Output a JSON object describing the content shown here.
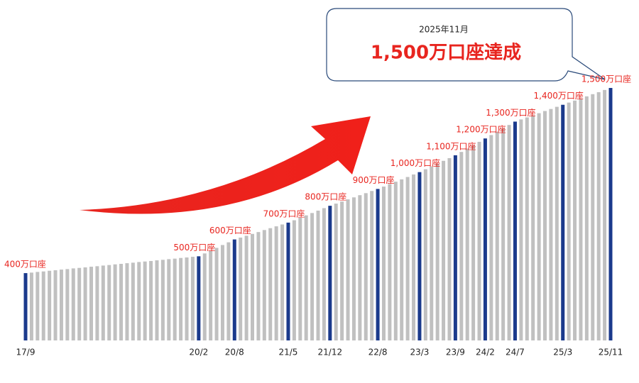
{
  "chart_data": {
    "type": "bar",
    "annotations": [
      "2025年11月",
      "1,500万口座達成"
    ],
    "color": "#c0c0c0",
    "highlight_color": "#1b3a8c",
    "label_color": "#e8251f",
    "categories": [
      "17/9",
      null,
      null,
      null,
      null,
      null,
      null,
      null,
      null,
      null,
      null,
      null,
      null,
      null,
      null,
      null,
      null,
      null,
      null,
      null,
      null,
      null,
      null,
      null,
      null,
      null,
      null,
      null,
      null,
      "20/2",
      null,
      null,
      null,
      null,
      null,
      "20/8",
      null,
      null,
      null,
      null,
      null,
      null,
      null,
      null,
      "21/5",
      null,
      null,
      null,
      null,
      null,
      null,
      "21/12",
      null,
      null,
      null,
      null,
      null,
      null,
      null,
      "22/8",
      null,
      null,
      null,
      null,
      null,
      null,
      "23/3",
      null,
      null,
      null,
      null,
      null,
      "23/9",
      null,
      null,
      null,
      null,
      "24/2",
      null,
      null,
      null,
      null,
      "24/7",
      null,
      null,
      null,
      null,
      null,
      null,
      null,
      "25/3",
      null,
      null,
      null,
      null,
      null,
      null,
      null,
      "25/11"
    ],
    "values": [
      400,
      403,
      407,
      410,
      414,
      417,
      421,
      424,
      428,
      431,
      434,
      438,
      441,
      445,
      448,
      452,
      455,
      459,
      462,
      466,
      469,
      472,
      476,
      479,
      483,
      486,
      490,
      493,
      497,
      500,
      517,
      533,
      550,
      567,
      583,
      600,
      611,
      622,
      633,
      644,
      656,
      667,
      678,
      689,
      700,
      714,
      729,
      743,
      757,
      771,
      786,
      800,
      813,
      825,
      838,
      850,
      863,
      875,
      888,
      900,
      914,
      929,
      943,
      957,
      971,
      986,
      1000,
      1017,
      1033,
      1050,
      1067,
      1083,
      1100,
      1120,
      1140,
      1160,
      1180,
      1200,
      1220,
      1240,
      1260,
      1280,
      1300,
      1313,
      1325,
      1338,
      1350,
      1363,
      1375,
      1388,
      1400,
      1413,
      1425,
      1438,
      1450,
      1463,
      1475,
      1488,
      1500
    ],
    "value_labels": [
      "400万口座",
      null,
      null,
      null,
      null,
      null,
      null,
      null,
      null,
      null,
      null,
      null,
      null,
      null,
      null,
      null,
      null,
      null,
      null,
      null,
      null,
      null,
      null,
      null,
      null,
      null,
      null,
      null,
      null,
      "500万口座",
      null,
      null,
      null,
      null,
      null,
      "600万口座",
      null,
      null,
      null,
      null,
      null,
      null,
      null,
      null,
      "700万口座",
      null,
      null,
      null,
      null,
      null,
      null,
      "800万口座",
      null,
      null,
      null,
      null,
      null,
      null,
      null,
      "900万口座",
      null,
      null,
      null,
      null,
      null,
      null,
      "1,000万口座",
      null,
      null,
      null,
      null,
      null,
      "1,100万口座",
      null,
      null,
      null,
      null,
      "1,200万口座",
      null,
      null,
      null,
      null,
      "1,300万口座",
      null,
      null,
      null,
      null,
      null,
      null,
      null,
      "1,400万口座",
      null,
      null,
      null,
      null,
      null,
      null,
      null,
      "1,500万口座"
    ]
  }
}
